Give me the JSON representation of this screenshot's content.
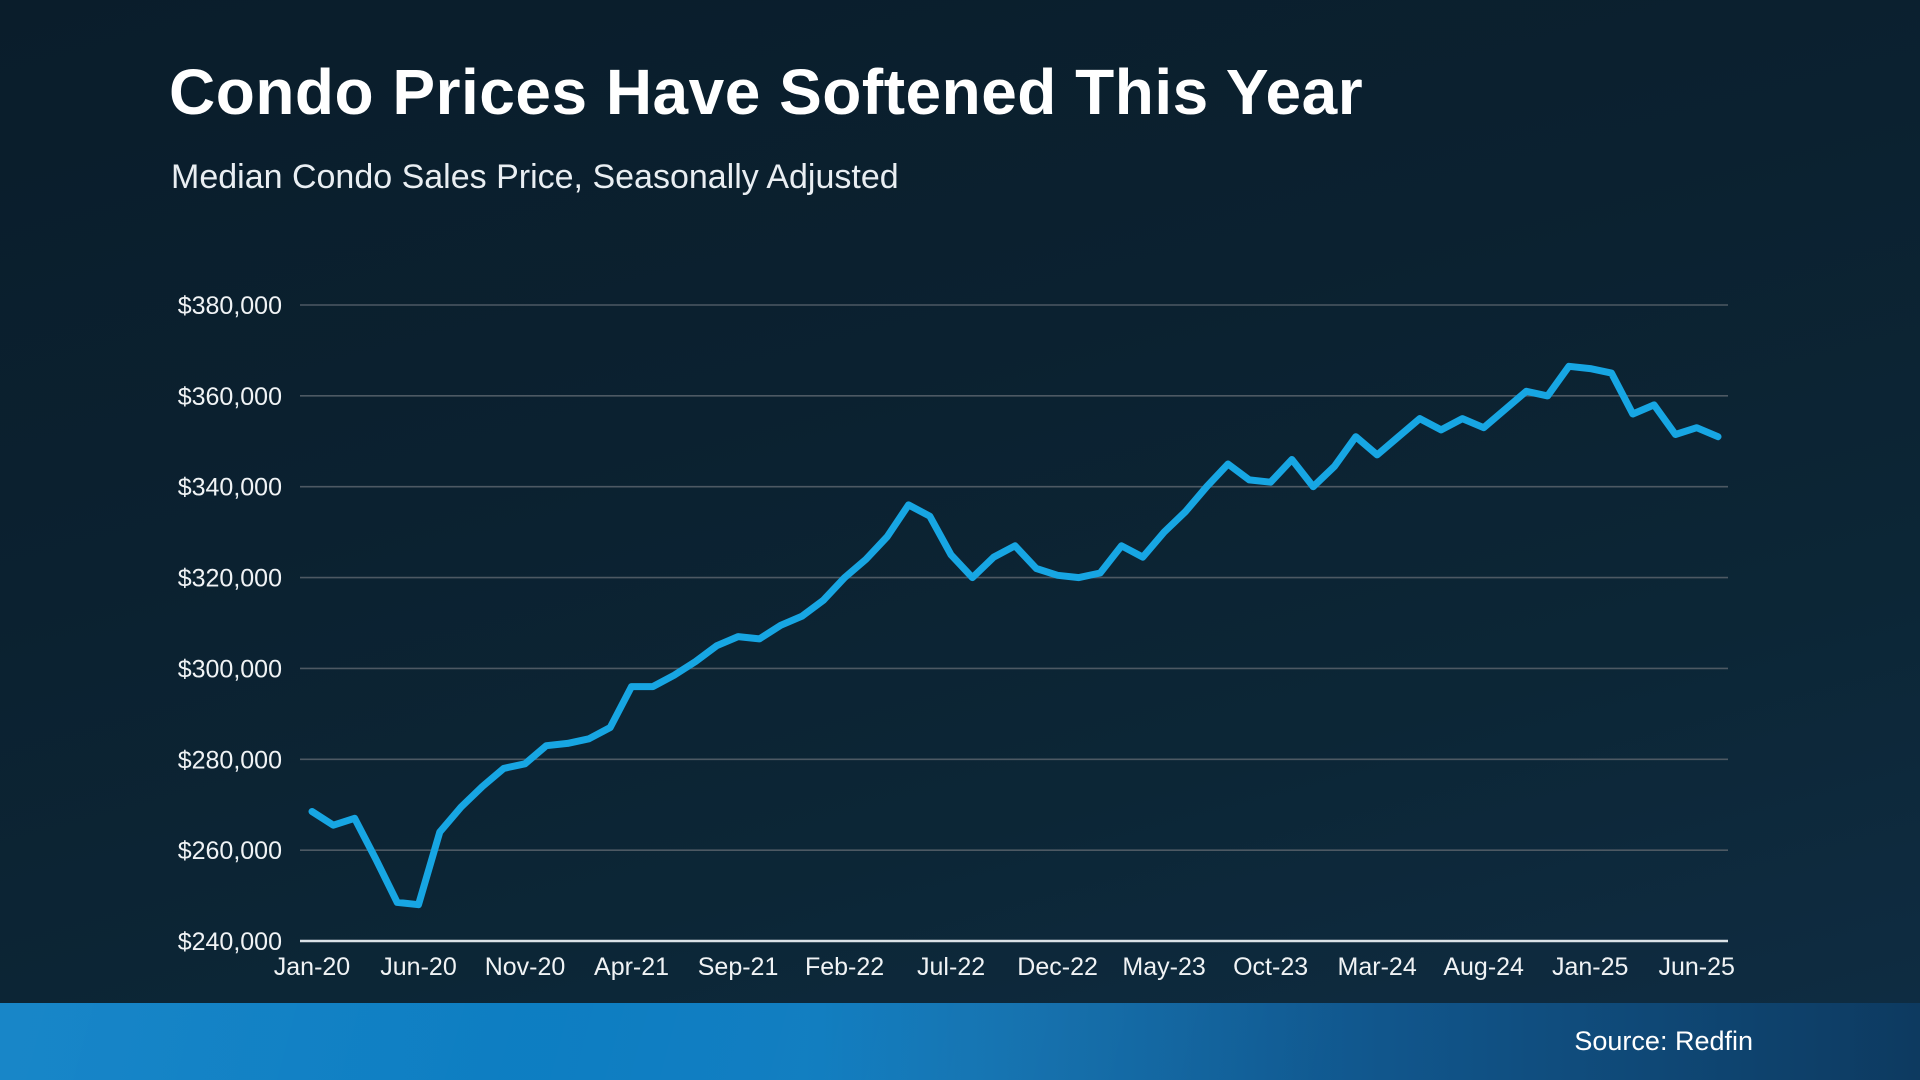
{
  "header": {
    "title": "Condo Prices Have Softened This Year",
    "subtitle": "Median Condo Sales Price, Seasonally Adjusted"
  },
  "footer": {
    "source_label": "Source: Redfin"
  },
  "chart_data": {
    "type": "line",
    "title": "Condo Prices Have Softened This Year",
    "subtitle": "Median Condo Sales Price, Seasonally Adjusted",
    "source": "Redfin",
    "grid": true,
    "legend_position": "none",
    "line_color": "#17a6e3",
    "grid_color": "#4d5963",
    "axis_line_color": "#dbe2e7",
    "tick_label_color": "#f0f3f5",
    "ylim": [
      240000,
      380000
    ],
    "y_ticks": {
      "values": [
        240000,
        260000,
        280000,
        300000,
        320000,
        340000,
        360000,
        380000
      ],
      "labels": [
        "$240,000",
        "$260,000",
        "$280,000",
        "$300,000",
        "$320,000",
        "$340,000",
        "$360,000",
        "$380,000"
      ]
    },
    "x_tick_labels": [
      "Jan-20",
      "Jun-20",
      "Nov-20",
      "Apr-21",
      "Sep-21",
      "Feb-22",
      "Jul-22",
      "Dec-22",
      "May-23",
      "Oct-23",
      "Mar-24",
      "Aug-24",
      "Jan-25",
      "Jun-25"
    ],
    "x": [
      "Jan-20",
      "Feb-20",
      "Mar-20",
      "Apr-20",
      "May-20",
      "Jun-20",
      "Jul-20",
      "Aug-20",
      "Sep-20",
      "Oct-20",
      "Nov-20",
      "Dec-20",
      "Jan-21",
      "Feb-21",
      "Mar-21",
      "Apr-21",
      "May-21",
      "Jun-21",
      "Jul-21",
      "Aug-21",
      "Sep-21",
      "Oct-21",
      "Nov-21",
      "Dec-21",
      "Jan-22",
      "Feb-22",
      "Mar-22",
      "Apr-22",
      "May-22",
      "Jun-22",
      "Jul-22",
      "Aug-22",
      "Sep-22",
      "Oct-22",
      "Nov-22",
      "Dec-22",
      "Jan-23",
      "Feb-23",
      "Mar-23",
      "Apr-23",
      "May-23",
      "Jun-23",
      "Jul-23",
      "Aug-23",
      "Sep-23",
      "Oct-23",
      "Nov-23",
      "Dec-23",
      "Jan-24",
      "Feb-24",
      "Mar-24",
      "Apr-24",
      "May-24",
      "Jun-24",
      "Jul-24",
      "Aug-24",
      "Sep-24",
      "Oct-24",
      "Nov-24",
      "Dec-24",
      "Jan-25",
      "Feb-25",
      "Mar-25",
      "Apr-25",
      "May-25",
      "Jun-25",
      "Jul-25"
    ],
    "series": [
      {
        "name": "Median Condo Sales Price, Seasonally Adjusted",
        "values": [
          268500,
          265500,
          267000,
          258000,
          248500,
          248000,
          264000,
          269500,
          274000,
          278000,
          279000,
          283000,
          283500,
          284500,
          287000,
          296000,
          296000,
          298500,
          301500,
          305000,
          307000,
          306500,
          309500,
          311500,
          315000,
          320000,
          324000,
          329000,
          336000,
          333500,
          325000,
          320000,
          324500,
          327000,
          322000,
          320500,
          320000,
          321000,
          327000,
          324500,
          330000,
          334500,
          340000,
          345000,
          341500,
          341000,
          346000,
          340000,
          344500,
          351000,
          347000,
          351000,
          355000,
          352500,
          355000,
          353000,
          357000,
          361000,
          360000,
          366500,
          366000,
          365000,
          356000,
          358000,
          351500,
          353000,
          351000
        ]
      }
    ]
  }
}
